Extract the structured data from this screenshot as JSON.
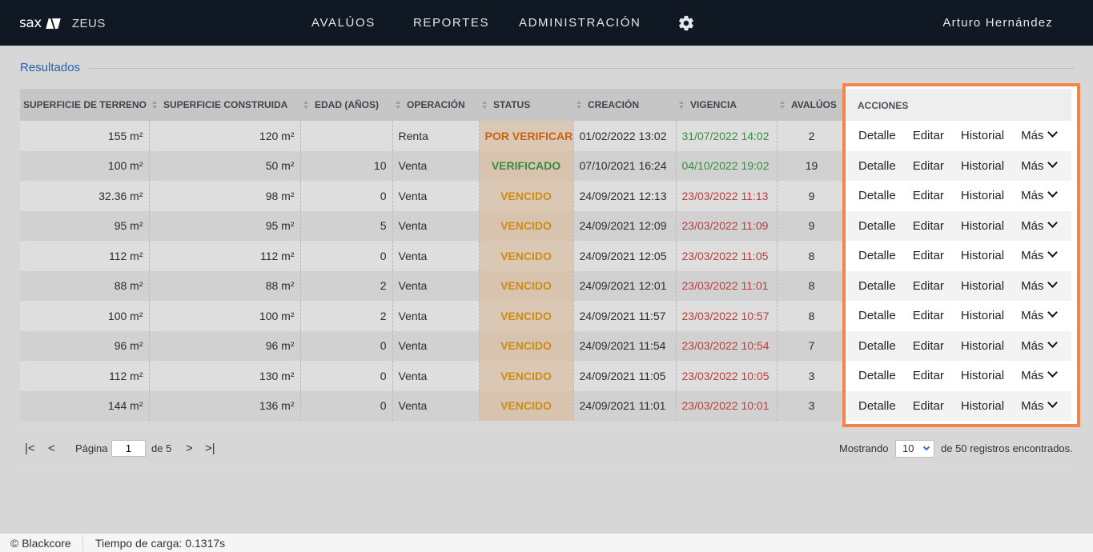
{
  "header": {
    "logo_text": "sax",
    "app_name": "ZEUS",
    "nav": [
      "AVALÚOS",
      "REPORTES",
      "ADMINISTRACIÓN"
    ],
    "settings_icon": "gear-icon",
    "user_name": "Arturo Hernández"
  },
  "section": {
    "title": "Resultados"
  },
  "table": {
    "columns": [
      "SUPERFICIE DE TERRENO",
      "SUPERFICIE CONSTRUIDA",
      "EDAD (AÑOS)",
      "OPERACIÓN",
      "STATUS",
      "CREACIÓN",
      "VIGENCIA",
      "AVALÚOS",
      "ACCIONES"
    ],
    "rows": [
      {
        "terreno": "155 m²",
        "construida": "120 m²",
        "edad": "",
        "operacion": "Renta",
        "status": "POR VERIFICAR",
        "status_kind": "orange",
        "creacion": "01/02/2022 13:02",
        "vigencia": "31/07/2022 14:02",
        "vigencia_kind": "green",
        "avaluos": "2"
      },
      {
        "terreno": "100 m²",
        "construida": "50 m²",
        "edad": "10",
        "operacion": "Venta",
        "status": "VERIFICADO",
        "status_kind": "green",
        "creacion": "07/10/2021 16:24",
        "vigencia": "04/10/2022 19:02",
        "vigencia_kind": "green",
        "avaluos": "19"
      },
      {
        "terreno": "32.36 m²",
        "construida": "98 m²",
        "edad": "0",
        "operacion": "Venta",
        "status": "VENCIDO",
        "status_kind": "amber",
        "creacion": "24/09/2021 12:13",
        "vigencia": "23/03/2022 11:13",
        "vigencia_kind": "red",
        "avaluos": "9"
      },
      {
        "terreno": "95 m²",
        "construida": "95 m²",
        "edad": "5",
        "operacion": "Venta",
        "status": "VENCIDO",
        "status_kind": "amber",
        "creacion": "24/09/2021 12:09",
        "vigencia": "23/03/2022 11:09",
        "vigencia_kind": "red",
        "avaluos": "9"
      },
      {
        "terreno": "112 m²",
        "construida": "112 m²",
        "edad": "0",
        "operacion": "Venta",
        "status": "VENCIDO",
        "status_kind": "amber",
        "creacion": "24/09/2021 12:05",
        "vigencia": "23/03/2022 11:05",
        "vigencia_kind": "red",
        "avaluos": "8"
      },
      {
        "terreno": "88 m²",
        "construida": "88 m²",
        "edad": "2",
        "operacion": "Venta",
        "status": "VENCIDO",
        "status_kind": "amber",
        "creacion": "24/09/2021 12:01",
        "vigencia": "23/03/2022 11:01",
        "vigencia_kind": "red",
        "avaluos": "8"
      },
      {
        "terreno": "100 m²",
        "construida": "100 m²",
        "edad": "2",
        "operacion": "Venta",
        "status": "VENCIDO",
        "status_kind": "amber",
        "creacion": "24/09/2021 11:57",
        "vigencia": "23/03/2022 10:57",
        "vigencia_kind": "red",
        "avaluos": "8"
      },
      {
        "terreno": "96 m²",
        "construida": "96 m²",
        "edad": "0",
        "operacion": "Venta",
        "status": "VENCIDO",
        "status_kind": "amber",
        "creacion": "24/09/2021 11:54",
        "vigencia": "23/03/2022 10:54",
        "vigencia_kind": "red",
        "avaluos": "7"
      },
      {
        "terreno": "112 m²",
        "construida": "130 m²",
        "edad": "0",
        "operacion": "Venta",
        "status": "VENCIDO",
        "status_kind": "amber",
        "creacion": "24/09/2021 11:05",
        "vigencia": "23/03/2022 10:05",
        "vigencia_kind": "red",
        "avaluos": "3"
      },
      {
        "terreno": "144 m²",
        "construida": "136 m²",
        "edad": "0",
        "operacion": "Venta",
        "status": "VENCIDO",
        "status_kind": "amber",
        "creacion": "24/09/2021 11:01",
        "vigencia": "23/03/2022 10:01",
        "vigencia_kind": "red",
        "avaluos": "3"
      }
    ],
    "actions": {
      "detalle": "Detalle",
      "editar": "Editar",
      "historial": "Historial",
      "mas": "Más"
    }
  },
  "pagination": {
    "first_icon": "|<",
    "prev_icon": "<",
    "page_label": "Página",
    "page_value": "1",
    "of_label": "de 5",
    "next_icon": ">",
    "last_icon": ">|",
    "showing_label": "Mostrando",
    "page_size": "10",
    "records_label": "de 50 registros encontrados."
  },
  "footer": {
    "copyright": "© Blackcore",
    "load_time": "Tiempo de carga: 0.1317s"
  },
  "colors": {
    "topbar": "#101824",
    "link": "#2a6fc9",
    "highlight": "#f3844a",
    "status_orange": "#e4731a",
    "status_green": "#3fa24a",
    "status_amber": "#eba01b",
    "date_red": "#d94545"
  }
}
